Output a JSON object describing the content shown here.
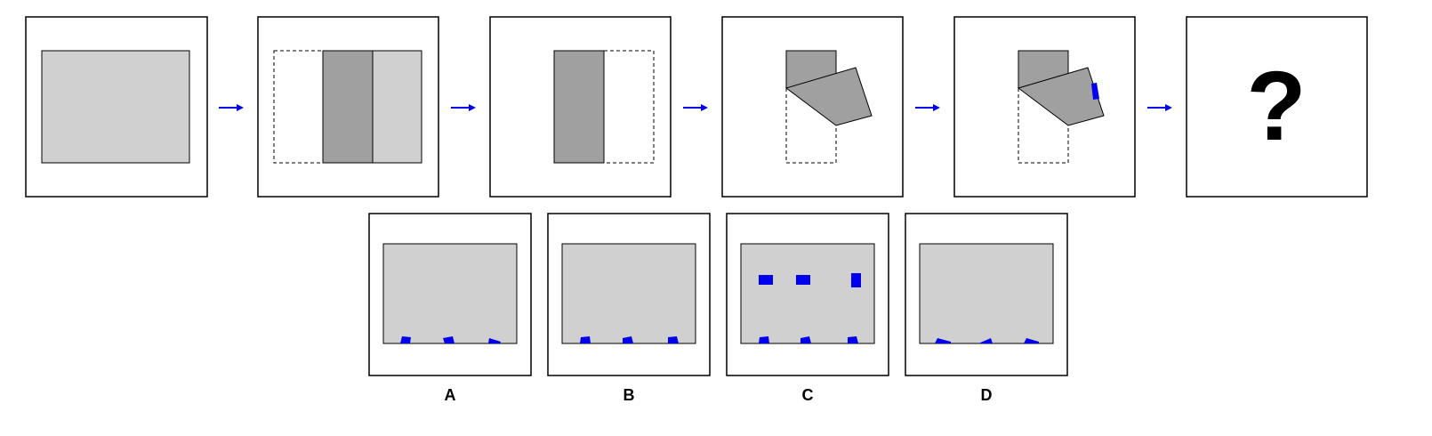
{
  "colors": {
    "frame": "#000000",
    "paper": "#d0d0d0",
    "paper_folded": "#a0a0a0",
    "hole": "#0000ee",
    "arrow": "#0000ee",
    "background": "#ffffff"
  },
  "sequence": {
    "steps": [
      {
        "name": "step-1-unfolded-paper"
      },
      {
        "name": "step-2-vertical-folds"
      },
      {
        "name": "step-3-folded-in-half"
      },
      {
        "name": "step-4-diagonal-fold"
      },
      {
        "name": "step-5-punched"
      },
      {
        "name": "step-6-unknown"
      }
    ],
    "question_mark": "?",
    "arrow_icon": "right-arrow-icon"
  },
  "options": [
    {
      "label": "A"
    },
    {
      "label": "B"
    },
    {
      "label": "C"
    },
    {
      "label": "D"
    }
  ]
}
